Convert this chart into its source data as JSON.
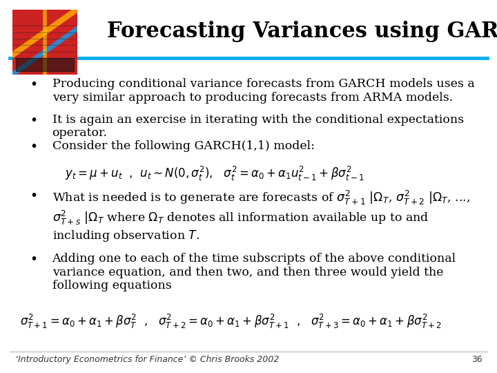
{
  "title": "Forecasting Variances using GARCH Models",
  "title_fontsize": 22,
  "title_fontweight": "bold",
  "background_color": "#ffffff",
  "header_line_color": "#00AEEF",
  "dot_color": "#1F6BB0",
  "footer_text": "‘Introductory Econometrics for Finance’ © Chris Brooks 2002",
  "footer_page": "36",
  "bullet_points": [
    "Producing conditional variance forecasts from GARCH models uses a\nvery similar approach to producing forecasts from ARMA models.",
    "It is again an exercise in iterating with the conditional expectations\noperator.",
    "Consider the following GARCH(1,1) model:"
  ],
  "equation1": "$y_t = \\mu + u_t$  ,  $u_t \\sim N(0,\\sigma_t^2)$,   $\\sigma_t^2 = \\alpha_0 + \\alpha_1 u_{t-1}^2  + \\beta\\sigma_{t-1}^{2}$",
  "bullet4": "What is needed is to generate are forecasts of $\\sigma_{T+1}^{2}$ $|\\Omega_T$, $\\sigma_{T+2}^{2}$ $|\\Omega_T$, ...,\n$\\sigma_{T+s}^{2}$ $|\\Omega_T$ where $\\Omega_T$ denotes all information available up to and\nincluding observation $T$.",
  "bullet5": "Adding one to each of the time subscripts of the above conditional\nvariance equation, and then two, and then three would yield the\nfollowing equations",
  "equation2": "$\\sigma_{T+1}^{2} = \\alpha_0 + \\alpha_1 +\\beta\\sigma_T^{2}$  ,   $\\sigma_{T+2}^{2} = \\alpha_0 + \\alpha_1 +\\beta\\sigma_{T+1}^{2}$  ,   $\\sigma_{T+3}^{2} = \\alpha_0 + \\alpha_1 +\\beta\\sigma_{T+2}^{2}$",
  "body_fontsize": 12.5,
  "eq_fontsize": 12
}
